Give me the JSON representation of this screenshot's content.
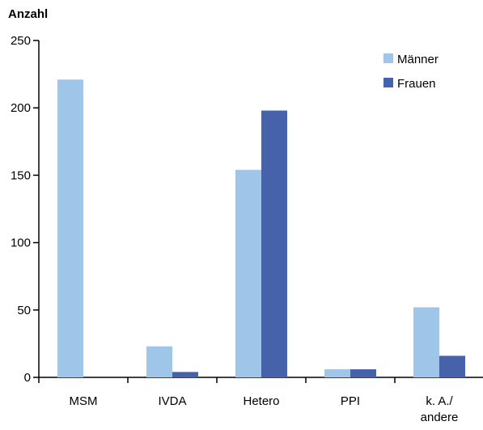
{
  "chart_data": {
    "type": "bar",
    "ylabel": "Anzahl",
    "categories": [
      "MSM",
      "IVDA",
      "Hetero",
      "PPI",
      "k. A./\nandere"
    ],
    "series": [
      {
        "name": "Männer",
        "values": [
          221,
          23,
          154,
          6,
          52
        ]
      },
      {
        "name": "Frauen",
        "values": [
          0,
          4,
          198,
          6,
          16
        ]
      }
    ],
    "ylim": [
      0,
      250
    ],
    "yticks": [
      0,
      50,
      100,
      150,
      200,
      250
    ],
    "grid": false,
    "legend_position": "top-right",
    "colors": {
      "Männer": "#9fc5e8",
      "Frauen": "#4562ab",
      "axis": "#000000",
      "text": "#000000"
    }
  }
}
